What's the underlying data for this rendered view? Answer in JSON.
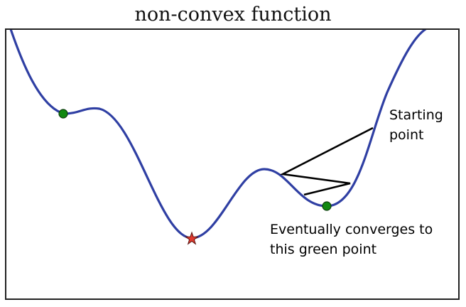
{
  "title": "non-convex function",
  "labels": {
    "start_line1": "Starting",
    "start_line2": "point",
    "converge_line1": "Eventually converges to",
    "converge_line2": "this green point"
  },
  "colors": {
    "curve": "#2f3fa3",
    "local_min_marker": "#118811",
    "global_min_marker": "#e03a2f",
    "path": "#000000",
    "frame": "#222222"
  }
}
